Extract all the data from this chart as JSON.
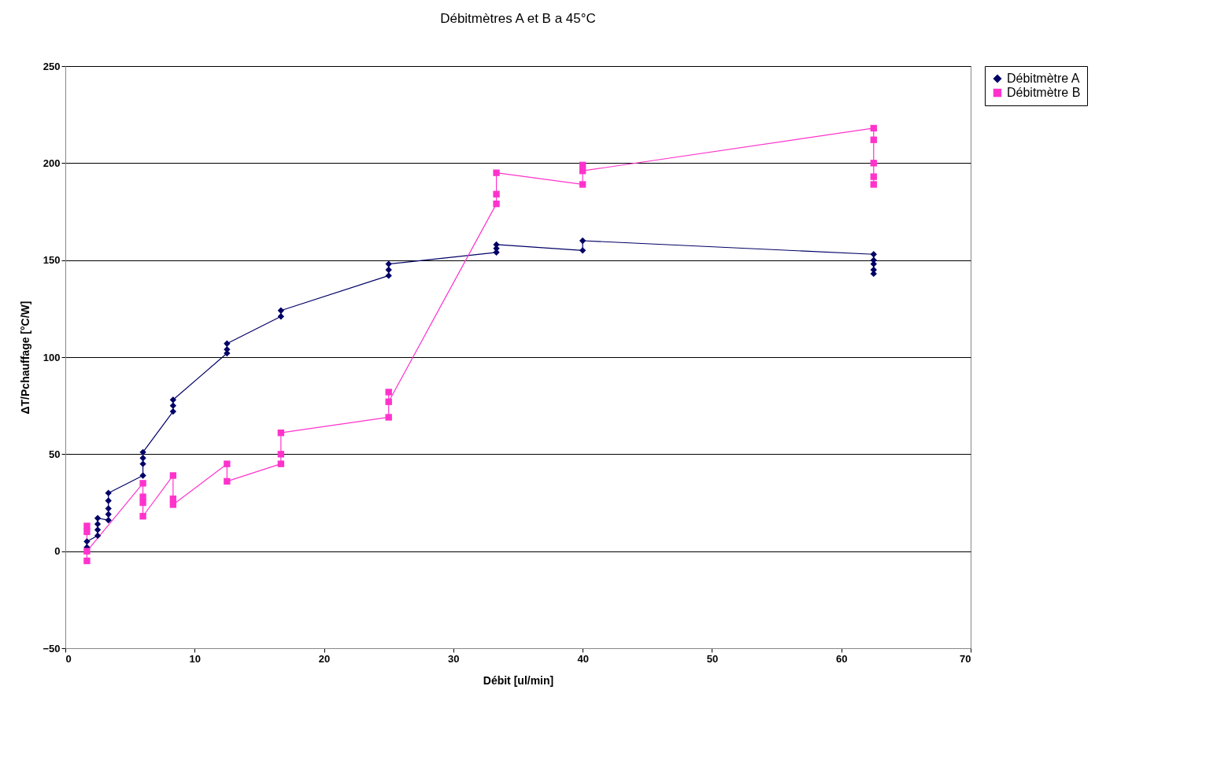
{
  "chart_data": {
    "type": "line",
    "title": "Débitmètres A et B a 45°C",
    "xlabel": "Débit [ul/min]",
    "ylabel": "ΔT/Pchauffage [°C/W]",
    "xlim": [
      0,
      70
    ],
    "xticks": [
      0,
      10,
      20,
      30,
      40,
      50,
      60,
      70
    ],
    "ylim": [
      -50,
      250
    ],
    "yticks": [
      -50,
      0,
      50,
      100,
      150,
      200,
      250
    ],
    "grid": "y",
    "legend": "right",
    "series": [
      {
        "name": "Débitmètre A",
        "marker": "diamond",
        "color": "#000066",
        "x": [
          1.67,
          1.67,
          2.5,
          2.5,
          2.5,
          2.5,
          3.33,
          3.33,
          3.33,
          3.33,
          3.33,
          6,
          6,
          6,
          6,
          8.33,
          8.33,
          8.33,
          12.5,
          12.5,
          12.5,
          16.67,
          16.67,
          25,
          25,
          25,
          33.33,
          33.33,
          33.33,
          40,
          40,
          62.5,
          62.5,
          62.5,
          62.5,
          62.5
        ],
        "values": [
          2,
          5,
          8,
          11,
          14,
          17,
          16,
          19,
          22,
          26,
          30,
          39,
          45,
          48,
          51,
          72,
          75,
          78,
          102,
          104,
          107,
          121,
          124,
          142,
          145,
          148,
          154,
          156,
          158,
          155,
          160,
          153,
          150,
          148,
          145,
          143
        ]
      },
      {
        "name": "Débitmètre B",
        "marker": "square",
        "color": "#ff33cc",
        "x": [
          1.67,
          1.67,
          1.67,
          1.67,
          6,
          6,
          6,
          6,
          8.33,
          8.33,
          8.33,
          12.5,
          12.5,
          16.67,
          16.67,
          16.67,
          25,
          25,
          25,
          33.33,
          33.33,
          33.33,
          40,
          40,
          40,
          62.5,
          62.5,
          62.5,
          62.5,
          62.5
        ],
        "values": [
          13,
          10,
          -5,
          0,
          35,
          28,
          25,
          18,
          39,
          27,
          24,
          45,
          36,
          45,
          50,
          61,
          69,
          82,
          77,
          179,
          184,
          195,
          189,
          199,
          196,
          218,
          212,
          200,
          193,
          189
        ]
      }
    ]
  }
}
